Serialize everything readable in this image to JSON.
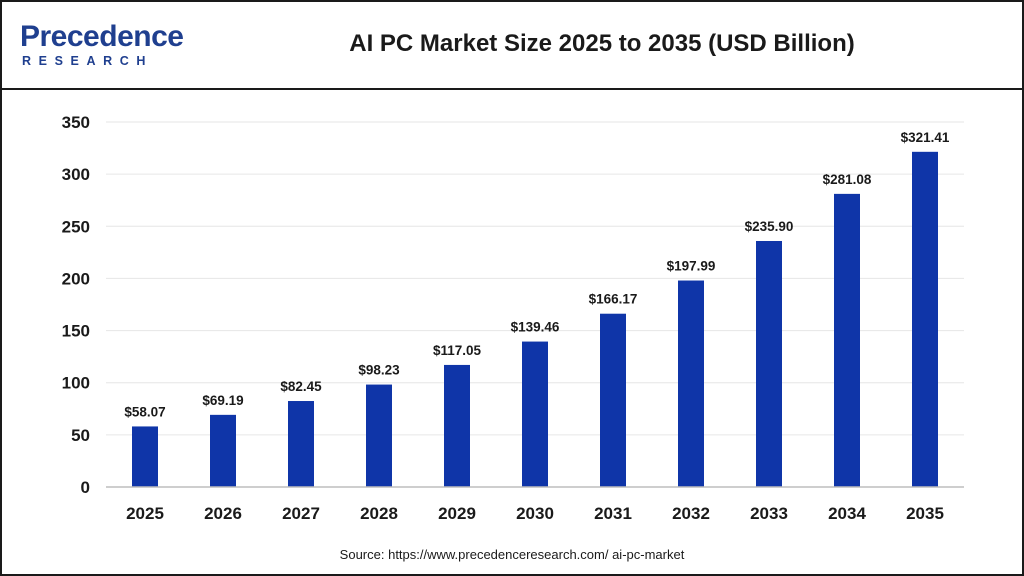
{
  "header": {
    "logo_main": "Precedence",
    "logo_sub": "RESEARCH",
    "title": "AI PC Market Size 2025 to 2035 (USD Billion)"
  },
  "footer": {
    "source": "Source: https://www.precedenceresearch.com/ ai-pc-market"
  },
  "colors": {
    "bar": "#0f35a8",
    "brand": "#1f3f8f"
  },
  "chart_data": {
    "type": "bar",
    "title": "AI PC Market Size 2025 to 2035 (USD Billion)",
    "categories": [
      "2025",
      "2026",
      "2027",
      "2028",
      "2029",
      "2030",
      "2031",
      "2032",
      "2033",
      "2034",
      "2035"
    ],
    "values": [
      58.07,
      69.19,
      82.45,
      98.23,
      117.05,
      139.46,
      166.17,
      197.99,
      235.9,
      281.08,
      321.41
    ],
    "data_labels": [
      "$58.07",
      "$69.19",
      "$82.45",
      "$98.23",
      "$117.05",
      "$139.46",
      "$166.17",
      "$197.99",
      "$235.90",
      "$281.08",
      "$321.41"
    ],
    "xlabel": "",
    "ylabel": "",
    "ylim": [
      0,
      350
    ],
    "yticks": [
      0,
      50,
      100,
      150,
      200,
      250,
      300,
      350
    ],
    "grid": true,
    "legend": "none"
  }
}
